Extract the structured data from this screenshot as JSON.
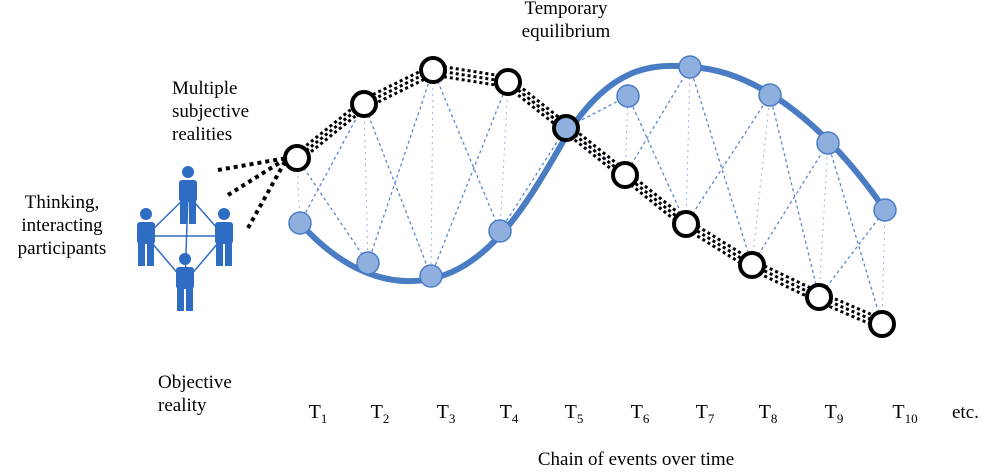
{
  "labels": {
    "participants_l1": "Thinking,",
    "participants_l2": "interacting",
    "participants_l3": "participants",
    "subjective_l1": "Multiple",
    "subjective_l2": "subjective",
    "subjective_l3": "realities",
    "equilibrium_l1": "Temporary",
    "equilibrium_l2": "equilibrium",
    "objective_l1": "Objective",
    "objective_l2": "reality",
    "etc": "etc.",
    "axis": "Chain of events over time"
  },
  "time_points": [
    {
      "main": "T",
      "sub": "1"
    },
    {
      "main": "T",
      "sub": "2"
    },
    {
      "main": "T",
      "sub": "3"
    },
    {
      "main": "T",
      "sub": "4"
    },
    {
      "main": "T",
      "sub": "5"
    },
    {
      "main": "T",
      "sub": "6"
    },
    {
      "main": "T",
      "sub": "7"
    },
    {
      "main": "T",
      "sub": "8"
    },
    {
      "main": "T",
      "sub": "9"
    },
    {
      "main": "T",
      "sub": "10"
    }
  ],
  "colors": {
    "objective_curve": "#4a7cc4",
    "objective_node_fill": "#8fb0df",
    "subjective_node_fill": "#ffffff",
    "subjective_stroke": "#000000",
    "connector": "#5b86c9",
    "people": "#2f6cc4"
  },
  "icons": {
    "participants": "people-network-icon"
  }
}
